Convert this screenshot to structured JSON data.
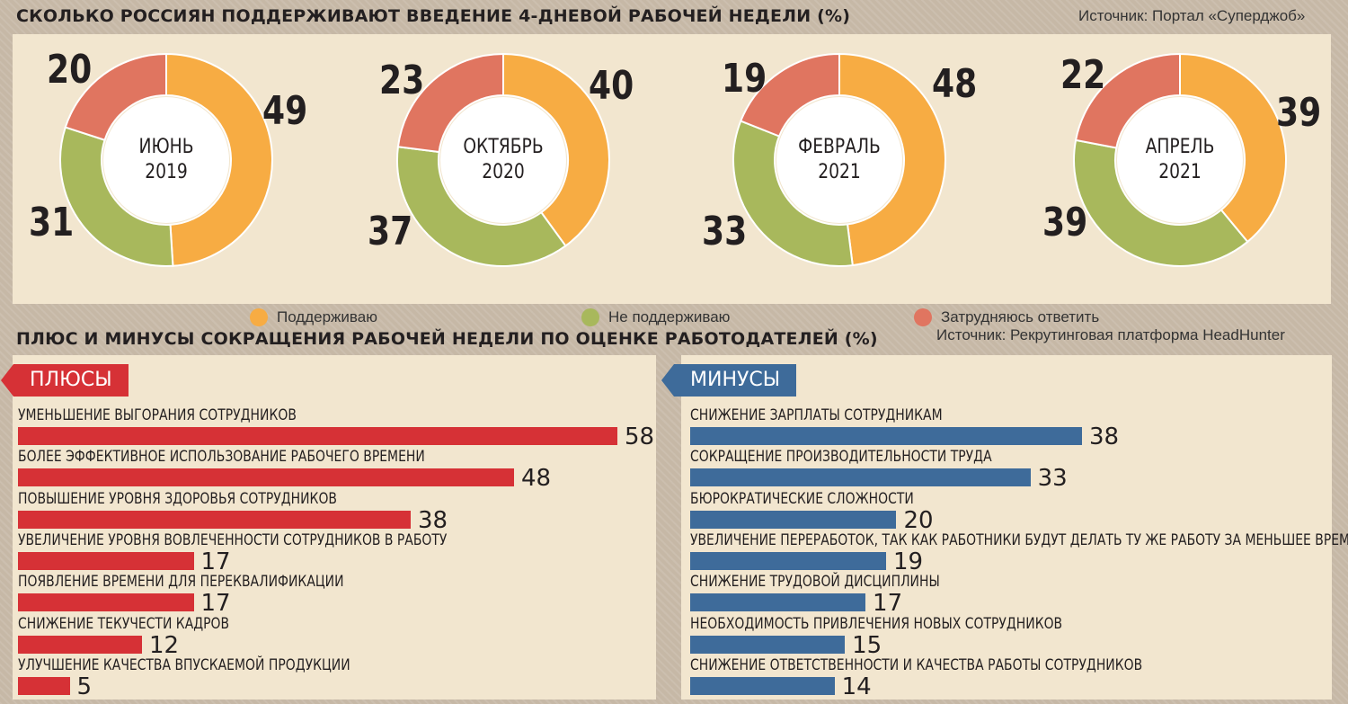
{
  "top": {
    "title": "СКОЛЬКО РОССИЯН ПОДДЕРЖИВАЮТ ВВЕДЕНИЕ 4-ДНЕВОЙ РАБОЧЕЙ НЕДЕЛИ (%)",
    "source": "Источник: Портал «Суперджоб»"
  },
  "bottom": {
    "title": "ПЛЮС И МИНУСЫ СОКРАЩЕНИЯ РАБОЧЕЙ НЕДЕЛИ ПО ОЦЕНКЕ РАБОТОДАТЕЛЕЙ (%)",
    "source": "Источник: Рекрутинговая платформа HeadHunter"
  },
  "colors": {
    "support": "#f7ac43",
    "not_support": "#a8b85c",
    "unsure": "#e07560",
    "plus_bar": "#d63136",
    "minus_bar": "#3e6b9a"
  },
  "chart_data": [
    {
      "type": "pie",
      "legend": [
        "Поддерживаю",
        "Не поддерживаю",
        "Затрудняюсь ответить"
      ],
      "donuts": [
        {
          "line1": "ИЮНЬ",
          "line2": "2019",
          "values": [
            49,
            31,
            20
          ]
        },
        {
          "line1": "ОКТЯБРЬ",
          "line2": "2020",
          "values": [
            40,
            37,
            23
          ]
        },
        {
          "line1": "ФЕВРАЛЬ",
          "line2": "2021",
          "values": [
            48,
            33,
            19
          ]
        },
        {
          "line1": "АПРЕЛЬ",
          "line2": "2021",
          "values": [
            39,
            39,
            22
          ]
        }
      ]
    },
    {
      "type": "bar",
      "title": "ПЛЮСЫ",
      "categories": [
        "УМЕНЬШЕНИЕ ВЫГОРАНИЯ СОТРУДНИКОВ",
        "БОЛЕЕ ЭФФЕКТИВНОЕ ИСПОЛЬЗОВАНИЕ РАБОЧЕГО ВРЕМЕНИ",
        "ПОВЫШЕНИЕ УРОВНЯ ЗДОРОВЬЯ СОТРУДНИКОВ",
        "УВЕЛИЧЕНИЕ УРОВНЯ ВОВЛЕЧЕННОСТИ СОТРУДНИКОВ В РАБОТУ",
        "ПОЯВЛЕНИЕ ВРЕМЕНИ ДЛЯ ПЕРЕКВАЛИФИКАЦИИ",
        "СНИЖЕНИЕ ТЕКУЧЕСТИ КАДРОВ",
        "УЛУЧШЕНИЕ КАЧЕСТВА ВПУСКАЕМОЙ ПРОДУКЦИИ"
      ],
      "values": [
        58,
        48,
        38,
        17,
        17,
        12,
        5
      ]
    },
    {
      "type": "bar",
      "title": "МИНУСЫ",
      "categories": [
        "СНИЖЕНИЕ ЗАРПЛАТЫ СОТРУДНИКАМ",
        "СОКРАЩЕНИЕ ПРОИЗВОДИТЕЛЬНОСТИ  ТРУДА",
        "БЮРОКРАТИЧЕСКИЕ СЛОЖНОСТИ",
        "УВЕЛИЧЕНИЕ ПЕРЕРАБОТОК, ТАК КАК РАБОТНИКИ БУДУТ ДЕЛАТЬ ТУ ЖЕ РАБОТУ ЗА МЕНЬШЕЕ ВРЕМЯ",
        "СНИЖЕНИЕ ТРУДОВОЙ ДИСЦИПЛИНЫ",
        "НЕОБХОДИМОСТЬ ПРИВЛЕЧЕНИЯ НОВЫХ СОТРУДНИКОВ",
        "СНИЖЕНИЕ ОТВЕТСТВЕННОСТИ И КАЧЕСТВА РАБОТЫ СОТРУДНИКОВ"
      ],
      "values": [
        38,
        33,
        20,
        19,
        17,
        15,
        14
      ]
    }
  ]
}
